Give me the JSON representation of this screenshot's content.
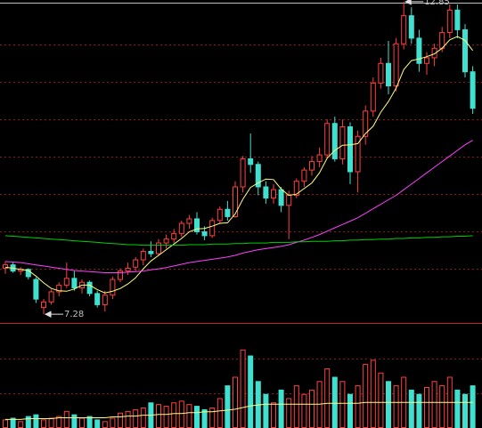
{
  "chart_data": {
    "type": "candlestick",
    "ylim": [
      7.14,
      12.88
    ],
    "candles": [
      [
        8.1,
        8.22,
        8.0,
        8.16
      ],
      [
        8.16,
        8.2,
        8.02,
        8.05
      ],
      [
        8.05,
        8.12,
        7.98,
        8.08
      ],
      [
        8.08,
        8.1,
        7.9,
        7.95
      ],
      [
        7.9,
        7.94,
        7.48,
        7.55
      ],
      [
        7.4,
        7.55,
        7.28,
        7.5
      ],
      [
        7.5,
        7.72,
        7.45,
        7.68
      ],
      [
        7.68,
        7.85,
        7.6,
        7.8
      ],
      [
        7.8,
        8.2,
        7.75,
        7.92
      ],
      [
        7.92,
        8.05,
        7.7,
        7.75
      ],
      [
        7.75,
        7.9,
        7.65,
        7.85
      ],
      [
        7.85,
        7.88,
        7.6,
        7.65
      ],
      [
        7.65,
        7.7,
        7.4,
        7.45
      ],
      [
        7.45,
        7.7,
        7.33,
        7.62
      ],
      [
        7.62,
        7.95,
        7.55,
        7.9
      ],
      [
        7.9,
        8.1,
        7.85,
        8.05
      ],
      [
        8.05,
        8.2,
        7.98,
        8.1
      ],
      [
        8.12,
        8.3,
        8.05,
        8.25
      ],
      [
        8.25,
        8.45,
        8.15,
        8.4
      ],
      [
        8.4,
        8.58,
        8.3,
        8.36
      ],
      [
        8.36,
        8.62,
        8.32,
        8.55
      ],
      [
        8.55,
        8.7,
        8.45,
        8.62
      ],
      [
        8.62,
        8.8,
        8.55,
        8.72
      ],
      [
        8.72,
        8.95,
        8.66,
        8.9
      ],
      [
        8.9,
        9.05,
        8.8,
        8.98
      ],
      [
        8.98,
        9.1,
        8.7,
        8.75
      ],
      [
        8.75,
        8.85,
        8.6,
        8.68
      ],
      [
        8.68,
        9.0,
        8.64,
        8.95
      ],
      [
        8.95,
        9.2,
        8.9,
        9.15
      ],
      [
        9.15,
        9.3,
        8.95,
        9.02
      ],
      [
        9.02,
        9.65,
        9.0,
        9.55
      ],
      [
        9.55,
        10.1,
        9.45,
        10.05
      ],
      [
        10.05,
        10.5,
        9.8,
        9.95
      ],
      [
        9.95,
        10.0,
        9.4,
        9.55
      ],
      [
        9.55,
        9.65,
        9.25,
        9.35
      ],
      [
        9.35,
        9.6,
        9.25,
        9.5
      ],
      [
        9.5,
        9.55,
        9.1,
        9.22
      ],
      [
        9.22,
        9.48,
        8.62,
        9.4
      ],
      [
        9.4,
        9.7,
        9.35,
        9.65
      ],
      [
        9.65,
        9.9,
        9.55,
        9.85
      ],
      [
        9.85,
        10.1,
        9.75,
        10.0
      ],
      [
        10.0,
        10.25,
        9.9,
        10.12
      ],
      [
        10.12,
        10.75,
        10.05,
        10.68
      ],
      [
        10.68,
        10.8,
        10.0,
        10.05
      ],
      [
        10.05,
        10.75,
        9.95,
        10.62
      ],
      [
        10.62,
        10.7,
        9.6,
        9.82
      ],
      [
        9.82,
        10.55,
        9.45,
        10.45
      ],
      [
        10.45,
        11.0,
        10.3,
        10.9
      ],
      [
        10.9,
        11.5,
        10.8,
        11.4
      ],
      [
        11.4,
        11.85,
        11.3,
        11.75
      ],
      [
        11.75,
        12.15,
        11.2,
        11.35
      ],
      [
        11.35,
        12.2,
        11.25,
        12.1
      ],
      [
        12.1,
        12.85,
        12.0,
        12.6
      ],
      [
        12.6,
        12.75,
        12.1,
        12.2
      ],
      [
        12.2,
        12.35,
        11.6,
        11.75
      ],
      [
        11.75,
        11.95,
        11.55,
        11.85
      ],
      [
        11.85,
        12.1,
        11.7,
        12.02
      ],
      [
        12.02,
        12.4,
        11.95,
        12.3
      ],
      [
        12.3,
        12.8,
        12.2,
        12.7
      ],
      [
        12.7,
        12.8,
        12.2,
        12.35
      ],
      [
        12.35,
        12.45,
        11.5,
        11.6
      ],
      [
        11.6,
        11.7,
        10.85,
        10.95
      ]
    ],
    "up_color": "#ff4040",
    "down_color": "#40e0d0",
    "ma": [
      {
        "color": "#ffff80",
        "values": [
          8.12,
          8.1,
          8.08,
          8.06,
          7.96,
          7.84,
          7.74,
          7.7,
          7.69,
          7.73,
          7.8,
          7.8,
          7.72,
          7.66,
          7.69,
          7.74,
          7.82,
          7.93,
          8.09,
          8.23,
          8.33,
          8.43,
          8.53,
          8.63,
          8.75,
          8.8,
          8.81,
          8.85,
          8.9,
          8.91,
          9.07,
          9.33,
          9.54,
          9.62,
          9.69,
          9.68,
          9.51,
          9.4,
          9.42,
          9.52,
          9.62,
          9.8,
          10.06,
          10.2,
          10.29,
          10.3,
          10.32,
          10.5,
          10.63,
          10.88,
          11.07,
          11.31,
          11.64,
          11.8,
          11.83,
          11.87,
          11.92,
          12.02,
          12.17,
          12.23,
          12.16,
          11.98
        ]
      },
      {
        "color": "#ff40ff",
        "values": [
          8.22,
          8.21,
          8.2,
          8.18,
          8.16,
          8.14,
          8.12,
          8.1,
          8.08,
          8.06,
          8.05,
          8.04,
          8.03,
          8.02,
          8.02,
          8.02,
          8.03,
          8.04,
          8.05,
          8.07,
          8.09,
          8.11,
          8.14,
          8.17,
          8.2,
          8.22,
          8.24,
          8.26,
          8.28,
          8.3,
          8.33,
          8.37,
          8.4,
          8.43,
          8.45,
          8.47,
          8.49,
          8.52,
          8.56,
          8.6,
          8.65,
          8.7,
          8.76,
          8.82,
          8.88,
          8.94,
          9.0,
          9.08,
          9.16,
          9.24,
          9.32,
          9.4,
          9.5,
          9.6,
          9.7,
          9.8,
          9.9,
          10.0,
          10.1,
          10.2,
          10.3,
          10.38
        ]
      },
      {
        "color": "#00d000",
        "values": [
          8.68,
          8.67,
          8.66,
          8.65,
          8.64,
          8.63,
          8.62,
          8.61,
          8.6,
          8.59,
          8.58,
          8.57,
          8.56,
          8.55,
          8.54,
          8.53,
          8.52,
          8.52,
          8.51,
          8.51,
          8.51,
          8.51,
          8.51,
          8.51,
          8.52,
          8.52,
          8.52,
          8.53,
          8.53,
          8.53,
          8.54,
          8.54,
          8.55,
          8.55,
          8.55,
          8.56,
          8.56,
          8.56,
          8.57,
          8.57,
          8.58,
          8.58,
          8.58,
          8.59,
          8.59,
          8.6,
          8.6,
          8.61,
          8.61,
          8.62,
          8.62,
          8.63,
          8.63,
          8.64,
          8.64,
          8.65,
          8.65,
          8.66,
          8.66,
          8.67,
          8.67,
          8.68
        ]
      }
    ],
    "annotations": [
      {
        "value": 7.28
      },
      {
        "value": 12.85
      }
    ],
    "volume": {
      "ylim": [
        0,
        120
      ],
      "values": [
        10,
        12,
        8,
        14,
        16,
        10,
        12,
        14,
        20,
        16,
        12,
        14,
        10,
        8,
        12,
        18,
        20,
        22,
        24,
        30,
        28,
        26,
        30,
        32,
        28,
        26,
        22,
        24,
        35,
        50,
        60,
        92,
        85,
        55,
        40,
        30,
        45,
        35,
        50,
        40,
        45,
        55,
        70,
        60,
        55,
        40,
        50,
        75,
        80,
        65,
        55,
        50,
        60,
        45,
        40,
        48,
        55,
        50,
        60,
        45,
        40,
        50
      ],
      "ma": {
        "color": "#ffff80",
        "values": [
          10,
          10,
          10,
          11,
          11,
          11,
          11,
          12,
          12,
          12,
          12,
          12,
          12,
          12,
          13,
          13,
          14,
          14,
          15,
          15,
          16,
          16,
          17,
          17,
          18,
          18,
          19,
          19,
          20,
          21,
          22,
          24,
          26,
          27,
          28,
          28,
          28,
          28,
          28,
          28,
          28,
          28,
          29,
          29,
          29,
          29,
          29,
          30,
          30,
          30,
          30,
          30,
          30,
          30,
          30,
          30,
          30,
          30,
          30,
          30,
          30,
          30
        ]
      }
    }
  }
}
